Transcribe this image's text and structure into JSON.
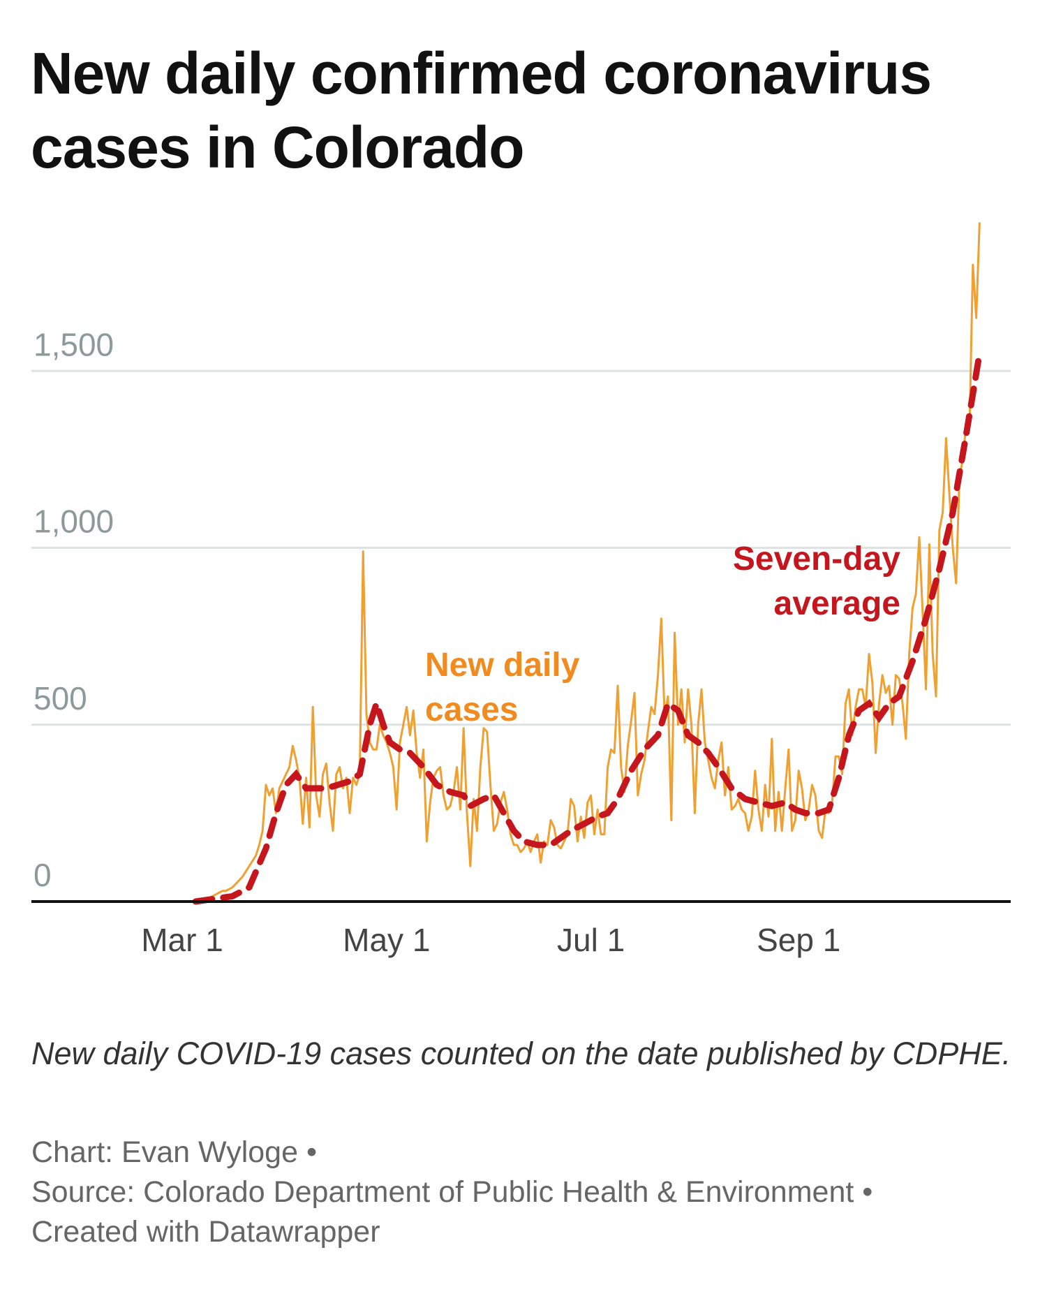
{
  "title": "New daily confirmed coronavirus cases in Colorado",
  "caption": "New daily COVID-19 cases counted on the date published by CDPHE.",
  "credits": {
    "chart": "Chart: Evan Wyloge •",
    "source": "Source: Colorado Department of Public Health & Environment •",
    "tool": "Created with Datawrapper"
  },
  "chart_data": {
    "type": "line",
    "title": "New daily confirmed coronavirus cases in Colorado",
    "xlabel": "",
    "ylabel": "",
    "ylim": [
      0,
      1950
    ],
    "grid": true,
    "legend": "none (direct labels)",
    "y_ticks": [
      "0",
      "500",
      "1,000",
      "1,500"
    ],
    "y_tick_values": [
      0,
      500,
      1000,
      1500
    ],
    "x_ticks": [
      "Mar 1",
      "May 1",
      "Jul 1",
      "Sep 1"
    ],
    "annotations": {
      "daily": [
        "New daily",
        "cases"
      ],
      "average": [
        "Seven-day",
        "average"
      ]
    },
    "colors": {
      "daily": "#f0a030",
      "average": "#c4161c",
      "daily_label": "#f28a1e",
      "grid": "#dde3e3",
      "axis": "#111111"
    },
    "series": [
      {
        "name": "New daily cases",
        "style": "solid",
        "start_date": "Mar 5",
        "values": [
          0,
          2,
          5,
          8,
          10,
          15,
          20,
          25,
          30,
          30,
          35,
          40,
          50,
          60,
          70,
          85,
          100,
          115,
          130,
          160,
          200,
          330,
          300,
          320,
          250,
          320,
          340,
          360,
          380,
          440,
          400,
          350,
          220,
          350,
          210,
          550,
          300,
          240,
          360,
          390,
          280,
          200,
          360,
          380,
          320,
          350,
          250,
          350,
          330,
          360,
          990,
          530,
          450,
          430,
          430,
          500,
          470,
          450,
          420,
          380,
          260,
          450,
          500,
          550,
          470,
          540,
          420,
          350,
          430,
          170,
          280,
          350,
          370,
          380,
          300,
          260,
          270,
          310,
          380,
          260,
          490,
          250,
          100,
          290,
          200,
          380,
          490,
          480,
          330,
          200,
          220,
          280,
          310,
          260,
          190,
          160,
          160,
          140,
          150,
          170,
          140,
          170,
          190,
          110,
          170,
          160,
          230,
          210,
          160,
          150,
          170,
          190,
          290,
          270,
          170,
          240,
          180,
          280,
          300,
          190,
          260,
          190,
          190,
          380,
          430,
          420,
          610,
          380,
          310,
          440,
          510,
          590,
          300,
          360,
          400,
          480,
          550,
          530,
          640,
          800,
          520,
          580,
          230,
          760,
          500,
          600,
          450,
          600,
          500,
          250,
          500,
          600,
          450,
          400,
          350,
          320,
          400,
          450,
          300,
          380,
          260,
          270,
          290,
          260,
          250,
          200,
          240,
          370,
          260,
          200,
          330,
          240,
          460,
          200,
          310,
          200,
          320,
          430,
          200,
          230,
          370,
          320,
          230,
          260,
          330,
          300,
          200,
          180,
          260,
          250,
          280,
          410,
          410,
          360,
          560,
          600,
          470,
          550,
          600,
          600,
          550,
          700,
          620,
          420,
          560,
          640,
          590,
          610,
          500,
          640,
          630,
          560,
          460,
          700,
          830,
          870,
          1030,
          820,
          600,
          1010,
          700,
          580,
          1050,
          1100,
          1310,
          1150,
          1000,
          900,
          1200,
          1250,
          1350,
          1340,
          1800,
          1650,
          1920
        ]
      },
      {
        "name": "Seven-day average",
        "style": "dashed",
        "points": [
          [
            "Mar 5",
            0
          ],
          [
            "Mar 16",
            15
          ],
          [
            "Mar 21",
            40
          ],
          [
            "Mar 26",
            150
          ],
          [
            "Mar 29",
            250
          ],
          [
            "Apr 1",
            330
          ],
          [
            "Apr 4",
            360
          ],
          [
            "Apr 7",
            320
          ],
          [
            "Apr 13",
            320
          ],
          [
            "Apr 20",
            340
          ],
          [
            "Apr 23",
            360
          ],
          [
            "Apr 26",
            500
          ],
          [
            "Apr 28",
            560
          ],
          [
            "Apr 30",
            500
          ],
          [
            "May 2",
            450
          ],
          [
            "May 5",
            430
          ],
          [
            "May 8",
            420
          ],
          [
            "May 12",
            380
          ],
          [
            "May 16",
            330
          ],
          [
            "May 20",
            310
          ],
          [
            "May 24",
            300
          ],
          [
            "May 26",
            270
          ],
          [
            "May 30",
            290
          ],
          [
            "Jun 2",
            300
          ],
          [
            "Jun 5",
            250
          ],
          [
            "Jun 8",
            200
          ],
          [
            "Jun 11",
            170
          ],
          [
            "Jun 15",
            160
          ],
          [
            "Jun 19",
            160
          ],
          [
            "Jun 22",
            180
          ],
          [
            "Jun 25",
            200
          ],
          [
            "Jun 29",
            220
          ],
          [
            "Jul 3",
            240
          ],
          [
            "Jul 6",
            250
          ],
          [
            "Jul 9",
            290
          ],
          [
            "Jul 13",
            370
          ],
          [
            "Jul 17",
            430
          ],
          [
            "Jul 21",
            470
          ],
          [
            "Jul 24",
            560
          ],
          [
            "Jul 27",
            540
          ],
          [
            "Jul 30",
            470
          ],
          [
            "Aug 2",
            450
          ],
          [
            "Aug 5",
            420
          ],
          [
            "Aug 8",
            380
          ],
          [
            "Aug 12",
            320
          ],
          [
            "Aug 16",
            290
          ],
          [
            "Aug 20",
            280
          ],
          [
            "Aug 24",
            270
          ],
          [
            "Aug 28",
            280
          ],
          [
            "Aug 31",
            260
          ],
          [
            "Sep 3",
            250
          ],
          [
            "Sep 7",
            250
          ],
          [
            "Sep 10",
            260
          ],
          [
            "Sep 13",
            350
          ],
          [
            "Sep 16",
            470
          ],
          [
            "Sep 19",
            540
          ],
          [
            "Sep 22",
            560
          ],
          [
            "Sep 25",
            520
          ],
          [
            "Sep 28",
            560
          ],
          [
            "Oct 1",
            580
          ],
          [
            "Oct 5",
            680
          ],
          [
            "Oct 9",
            800
          ],
          [
            "Oct 13",
            940
          ],
          [
            "Oct 17",
            1100
          ],
          [
            "Oct 21",
            1320
          ],
          [
            "Oct 25",
            1550
          ]
        ]
      }
    ]
  }
}
